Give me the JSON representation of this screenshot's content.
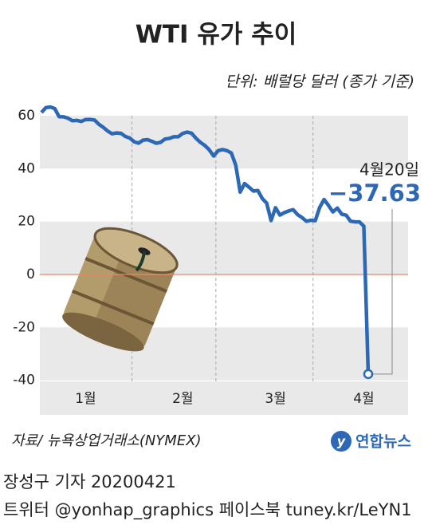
{
  "chart_data": {
    "type": "line",
    "title": "WTI 유가 추이",
    "subtitle": "단위: 배럴당 달러 (종가 기준)",
    "categories": [
      null,
      null,
      null,
      null,
      null,
      null,
      null,
      null,
      null,
      null,
      "1월",
      null,
      null,
      null,
      null,
      null,
      null,
      null,
      null,
      null,
      null,
      null,
      null,
      null,
      null,
      null,
      null,
      null,
      null,
      null,
      null,
      null,
      "2월",
      null,
      null,
      null,
      null,
      null,
      null,
      null,
      null,
      null,
      null,
      null,
      null,
      null,
      null,
      null,
      null,
      null,
      null,
      null,
      null,
      "3월",
      null,
      null,
      null,
      null,
      null,
      null,
      null,
      null,
      null,
      null,
      null,
      null,
      null,
      null,
      null,
      null,
      null,
      null,
      null,
      "4월",
      null
    ],
    "series": [
      {
        "name": "WTI",
        "color": "#2c68b5",
        "values": [
          61.18,
          63.05,
          63.27,
          62.7,
          59.61,
          59.56,
          59.04,
          58.08,
          58.23,
          57.81,
          58.52,
          58.54,
          58.38,
          56.74,
          55.59,
          54.19,
          53.14,
          53.48,
          53.33,
          52.14,
          51.56,
          50.11,
          49.61,
          50.75,
          50.95,
          50.32,
          49.57,
          49.94,
          51.17,
          51.42,
          52.05,
          52.05,
          53.29,
          53.78,
          53.38,
          51.43,
          49.9,
          48.73,
          47.09,
          44.76,
          46.75,
          47.18,
          46.78,
          45.9,
          41.28,
          31.13,
          34.36,
          32.98,
          31.5,
          31.73,
          28.7,
          26.95,
          20.37,
          25.22,
          22.43,
          23.36,
          24.01,
          24.49,
          22.6,
          21.51,
          20.09,
          20.48,
          20.31,
          25.32,
          28.34,
          26.08,
          23.63,
          25.09,
          22.76,
          22.41,
          20.11,
          19.87,
          19.87,
          18.27,
          -37.63
        ],
        "value_labels": [
          null,
          null,
          null,
          null,
          null,
          null,
          null,
          null,
          null,
          null,
          null,
          null,
          null,
          null,
          null,
          null,
          null,
          null,
          null,
          null,
          null,
          null,
          null,
          null,
          null,
          null,
          null,
          null,
          null,
          null,
          null,
          null,
          null,
          null,
          null,
          null,
          null,
          null,
          null,
          null,
          null,
          null,
          null,
          null,
          null,
          null,
          null,
          null,
          null,
          null,
          null,
          null,
          null,
          null,
          null,
          null,
          null,
          null,
          null,
          null,
          null,
          null,
          null,
          null,
          null,
          null,
          null,
          null,
          null,
          null,
          null,
          null,
          null,
          null,
          "−37.63"
        ]
      }
    ],
    "annotation": "4월20일",
    "ylim": [
      -41,
      63
    ],
    "yticks": [
      60,
      40,
      20,
      0,
      -20,
      -40
    ],
    "zero_line_color": "#e8876a",
    "source": "자료/ 뉴욕상업거래소(NYMEX)",
    "logo": "연합뉴스",
    "credit": "장성구 기자  20200421",
    "social": "트위터 @yonhap_graphics  페이스북 tuney.kr/LeYN1"
  }
}
